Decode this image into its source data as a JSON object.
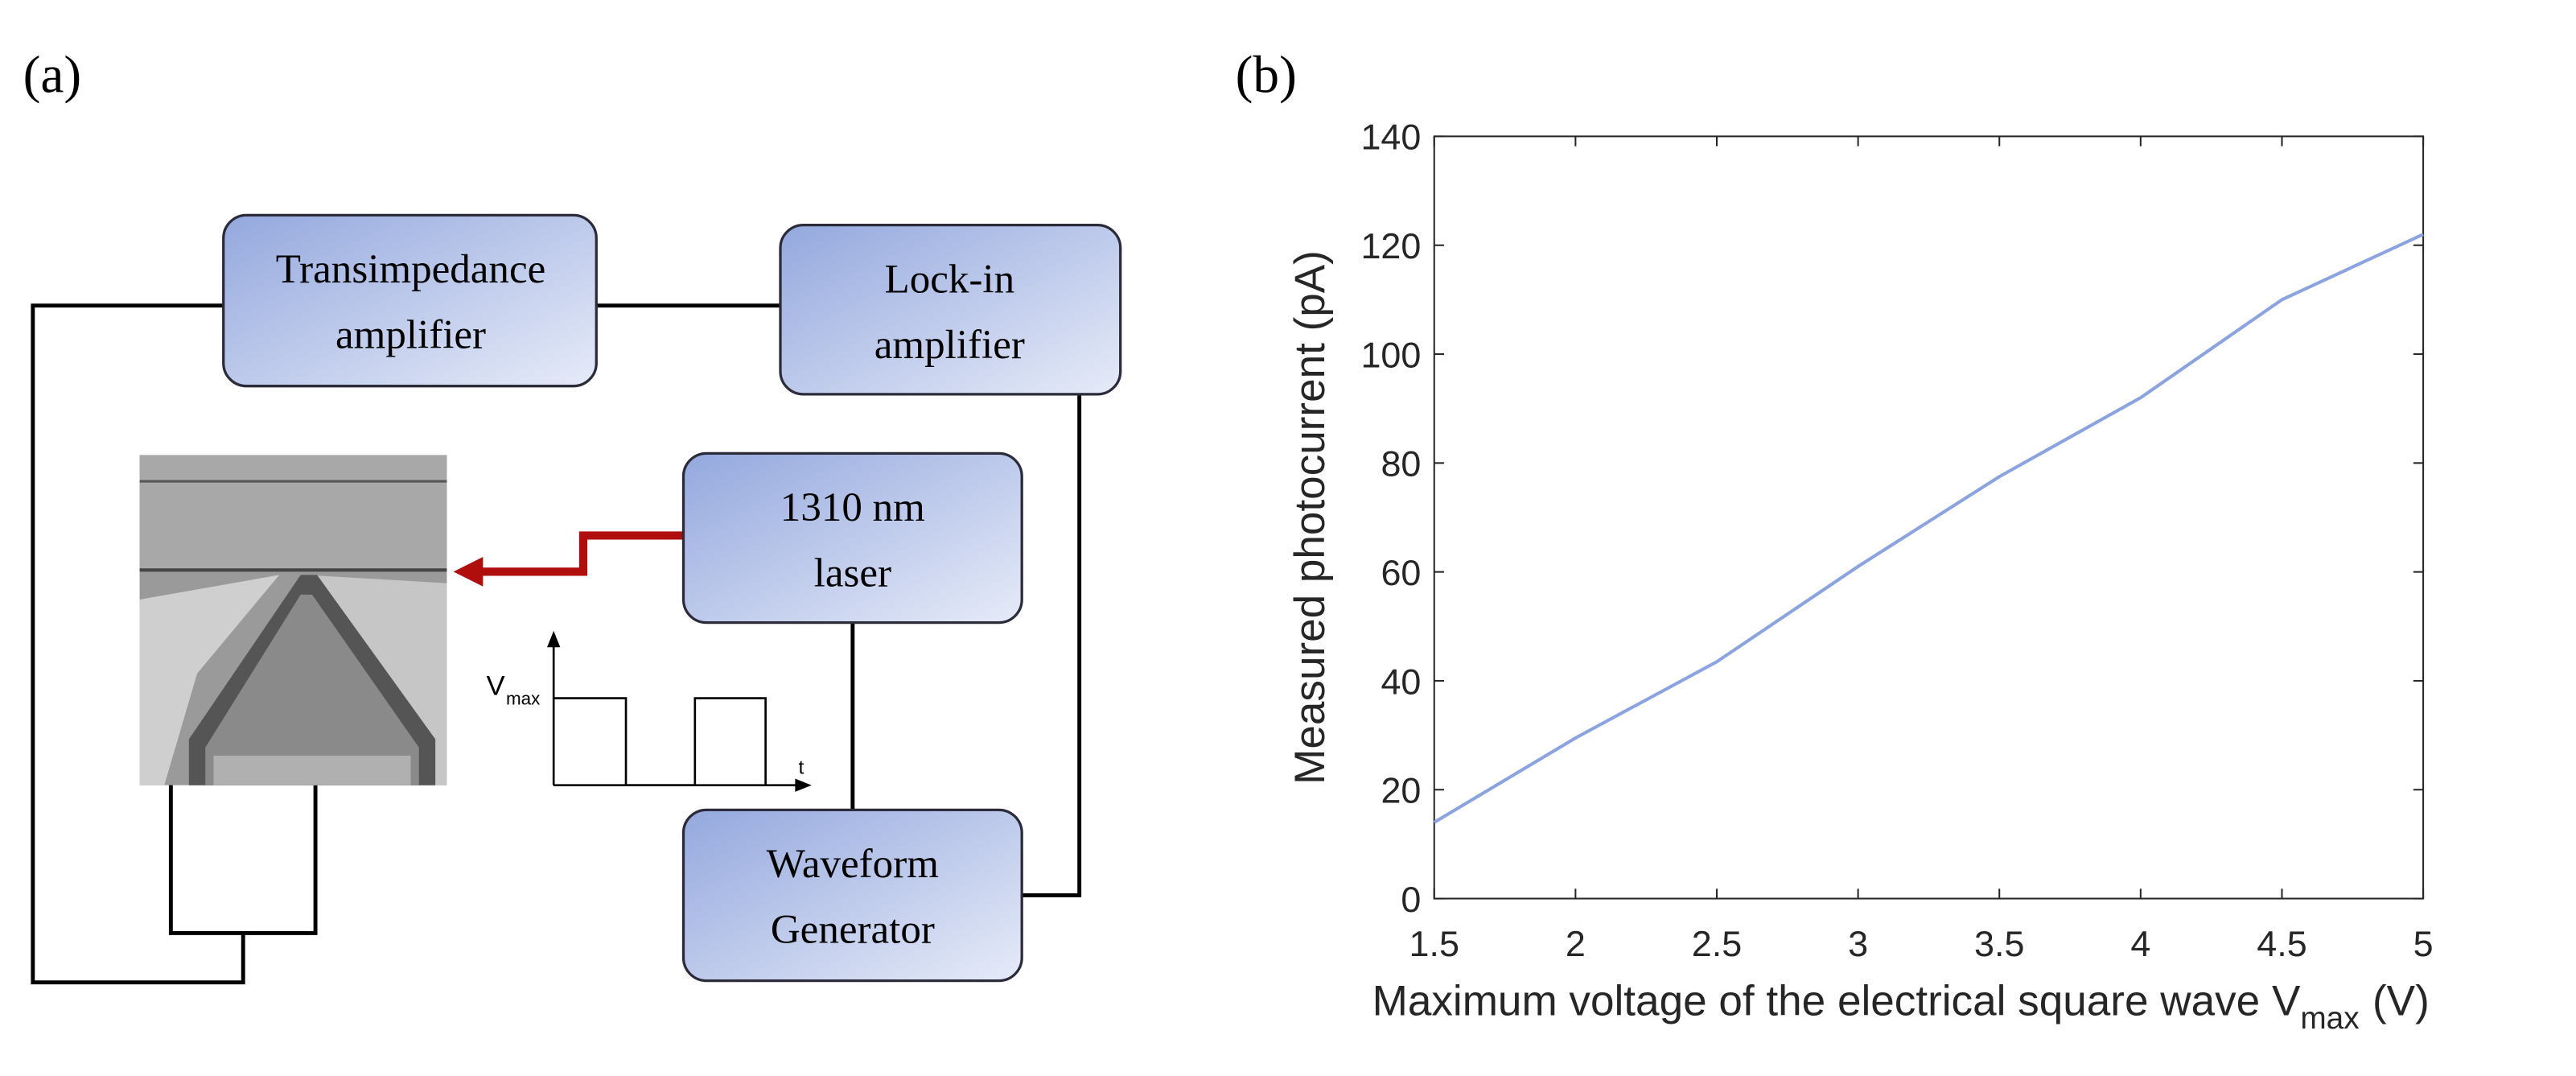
{
  "panels": {
    "a": "(a)",
    "b": "(b)"
  },
  "diagram": {
    "nodes": [
      {
        "lines": [
          "Transimpedance",
          "amplifier"
        ]
      },
      {
        "lines": [
          "Lock-in",
          "amplifier"
        ]
      },
      {
        "lines": [
          "1310 nm",
          "laser"
        ]
      },
      {
        "lines": [
          "Waveform",
          "Generator"
        ]
      }
    ],
    "waveform": {
      "amplitude_label": "V",
      "amplitude_sub": "max",
      "time_label": "t"
    }
  },
  "chart_data": {
    "type": "line",
    "xlabel": "Maximum voltage of the electrical square wave V",
    "xlabel_sub": "max",
    "xlabel_unit": "(V)",
    "ylabel": "Measured photocurrent (pA)",
    "x": [
      1.5,
      2,
      2.5,
      3,
      3.5,
      4,
      4.5,
      5
    ],
    "series": [
      {
        "color": "#8ba3e0",
        "values": [
          14,
          29.5,
          43.5,
          61,
          77.5,
          92,
          110,
          122
        ]
      }
    ],
    "xlim": [
      1.5,
      5
    ],
    "xticks": [
      1.5,
      2,
      2.5,
      3,
      3.5,
      4,
      4.5,
      5
    ],
    "ylim": [
      0,
      140
    ],
    "yticks": [
      0,
      20,
      40,
      60,
      80,
      100,
      120,
      140
    ],
    "grid": false
  }
}
